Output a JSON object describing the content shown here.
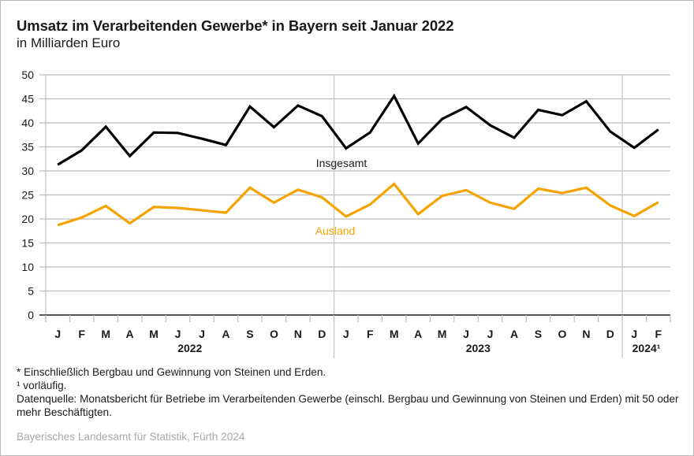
{
  "header": {
    "title": "Umsatz im Verarbeitenden Gewerbe* in Bayern seit Januar 2022",
    "subtitle": "in Milliarden Euro"
  },
  "footnotes": [
    "* Einschließlich Bergbau und Gewinnung von Steinen und Erden.",
    "¹ vorläufig.",
    "Datenquelle: Monatsbericht für Betriebe im Verarbeitenden Gewerbe (einschl. Bergbau und Gewinnung von Steinen und Erden) mit 50 oder mehr Beschäftigten."
  ],
  "source": "Bayerisches Landesamt für Statistik, Fürth 2024",
  "chart_data": {
    "type": "line",
    "title": "Umsatz im Verarbeitenden Gewerbe* in Bayern seit Januar 2022",
    "subtitle": "in Milliarden Euro",
    "xlabel": "",
    "ylabel": "",
    "ylim": [
      0,
      50
    ],
    "yticks": [
      0,
      5,
      10,
      15,
      20,
      25,
      30,
      35,
      40,
      45,
      50
    ],
    "grid": true,
    "categories": [
      "J",
      "F",
      "M",
      "A",
      "M",
      "J",
      "J",
      "A",
      "S",
      "O",
      "N",
      "D",
      "J",
      "F",
      "M",
      "A",
      "M",
      "J",
      "J",
      "A",
      "S",
      "O",
      "N",
      "D",
      "J",
      "F"
    ],
    "year_groups": [
      {
        "label": "2022",
        "start": 0,
        "end": 11
      },
      {
        "label": "2023",
        "start": 12,
        "end": 23
      },
      {
        "label": "2024¹",
        "start": 24,
        "end": 25
      }
    ],
    "series": [
      {
        "name": "Insgesamt",
        "color": "#000000",
        "values": [
          31.3,
          34.3,
          39.2,
          33.1,
          38.0,
          37.9,
          36.7,
          35.4,
          43.4,
          39.1,
          43.6,
          41.4,
          34.7,
          38.0,
          45.6,
          35.7,
          40.8,
          43.3,
          39.5,
          36.9,
          42.7,
          41.6,
          44.5,
          38.2,
          34.8,
          38.6
        ]
      },
      {
        "name": "Ausland",
        "color": "#f5a300",
        "values": [
          18.7,
          20.3,
          22.7,
          19.1,
          22.5,
          22.3,
          21.8,
          21.3,
          26.5,
          23.4,
          26.1,
          24.5,
          20.5,
          23.0,
          27.3,
          21.0,
          24.8,
          26.0,
          23.4,
          22.1,
          26.3,
          25.4,
          26.5,
          22.8,
          20.6,
          23.5
        ]
      }
    ],
    "annotations": [
      {
        "text": "Insgesamt",
        "series": "Insgesamt"
      },
      {
        "text": "Ausland",
        "series": "Ausland"
      }
    ]
  }
}
